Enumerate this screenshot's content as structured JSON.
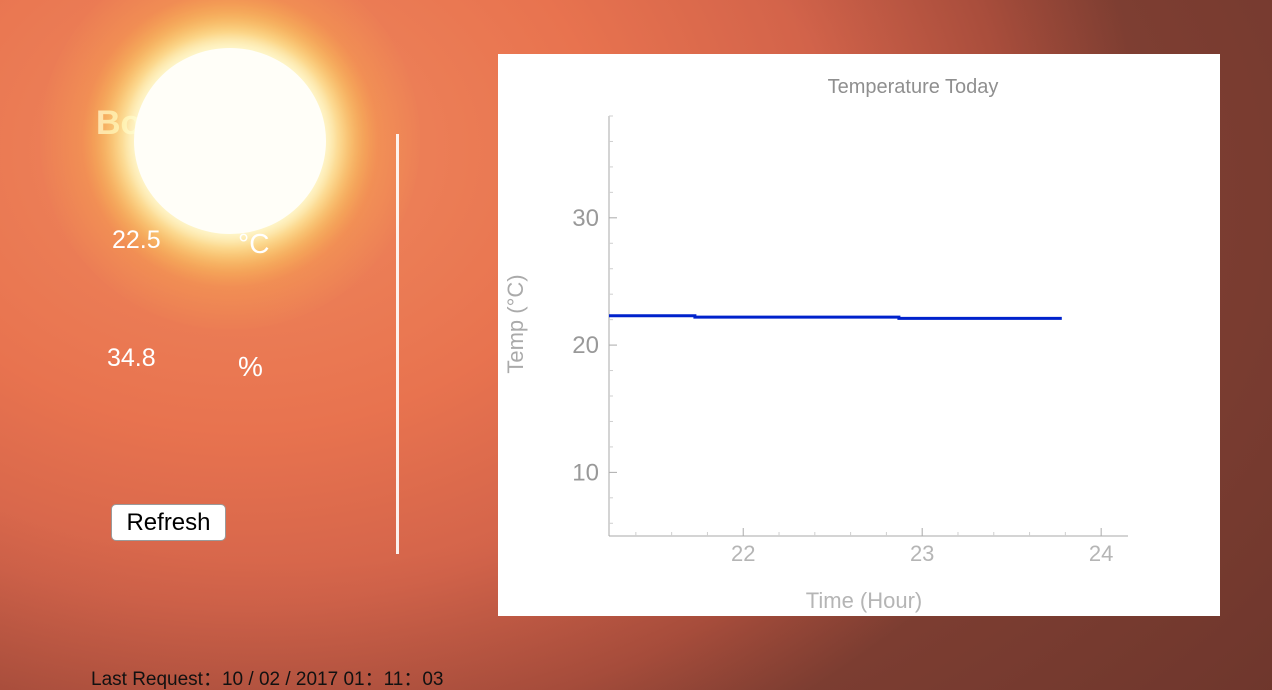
{
  "location": {
    "city_label": "Bo"
  },
  "readings": {
    "temperature": "22.5",
    "temperature_unit": "°C",
    "humidity": "34.8",
    "humidity_unit": "%"
  },
  "refresh_label": "Refresh",
  "last_request": {
    "label": "Last Request：",
    "value": "10 / 02 / 2017 01：11：03"
  },
  "colors": {
    "series": "#0022cc",
    "axis": "#aaaaaa",
    "text_muted": "#999999"
  },
  "chart_data": {
    "type": "line",
    "title": "Temperature Today",
    "xlabel": "Time (Hour)",
    "ylabel": "Temp (°C)",
    "xlim": [
      21.25,
      24.15
    ],
    "ylim": [
      5,
      38
    ],
    "xticks": [
      22,
      23,
      24
    ],
    "yticks": [
      10,
      20,
      30
    ],
    "series": [
      {
        "x": [
          21.25,
          21.73,
          21.73,
          22.87,
          22.87,
          23.78
        ],
        "y": [
          22.3,
          22.3,
          22.2,
          22.2,
          22.1,
          22.1
        ]
      }
    ]
  }
}
